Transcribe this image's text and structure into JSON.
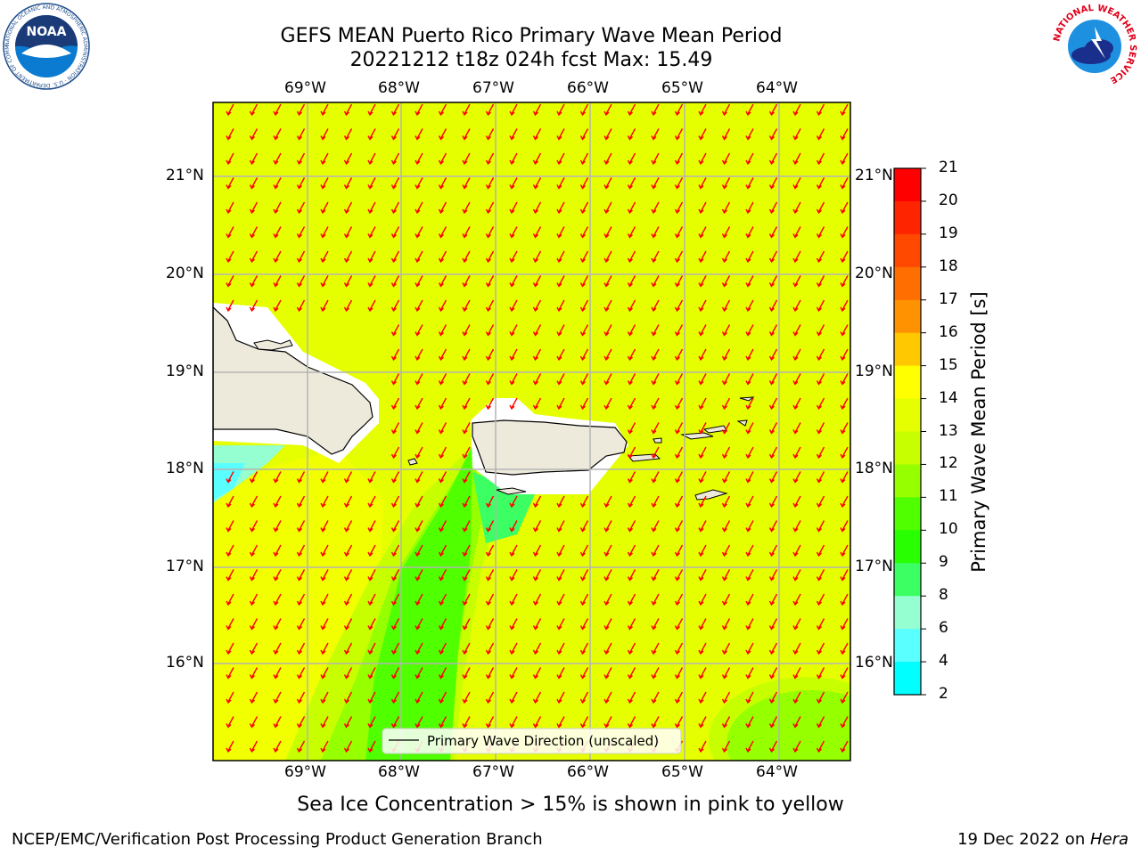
{
  "title": {
    "line1": "GEFS MEAN Puerto Rico Primary Wave Mean Period",
    "line2": "20221212 t18z 024h fcst   Max: 15.49"
  },
  "map": {
    "lon_labels": [
      "69°W",
      "68°W",
      "67°W",
      "66°W",
      "65°W",
      "64°W"
    ],
    "lat_labels": [
      "21°N",
      "20°N",
      "19°N",
      "18°N",
      "17°N",
      "16°N"
    ],
    "legend_text": "Primary Wave Direction (unscaled)",
    "arrow_color": "#ff0000",
    "land_color": "#eeeadb",
    "field_color": "#e6ff00"
  },
  "colorbar": {
    "label": "Primary Wave Mean Period [s]",
    "ticks": [
      "21",
      "20",
      "19",
      "18",
      "17",
      "16",
      "15",
      "14",
      "13",
      "12",
      "11",
      "10",
      "9",
      "8",
      "6",
      "4",
      "2"
    ],
    "colors": [
      "#ff0000",
      "#ff2400",
      "#ff4800",
      "#ff6e00",
      "#ff9200",
      "#ffc800",
      "#ffff00",
      "#e6ff00",
      "#c8ff00",
      "#96ff00",
      "#50ff00",
      "#28ff00",
      "#3cff64",
      "#96ffd2",
      "#5affff",
      "#00ffff",
      "#0082ff",
      "#0000ff"
    ]
  },
  "caption": "Sea Ice Concentration > 15% is shown in pink to yellow",
  "footer": {
    "left": "NCEP/EMC/Verification Post Processing Product Generation Branch",
    "right_date": "19 Dec 2022 on ",
    "right_host": "Hera"
  },
  "logos": {
    "noaa": "NOAA",
    "noaa_ring": "NATIONAL OCEANIC AND ATMOSPHERIC ADMINISTRATION · U.S. DEPARTMENT OF COMMERCE",
    "nws_ring": "NATIONAL WEATHER SERVICE"
  }
}
